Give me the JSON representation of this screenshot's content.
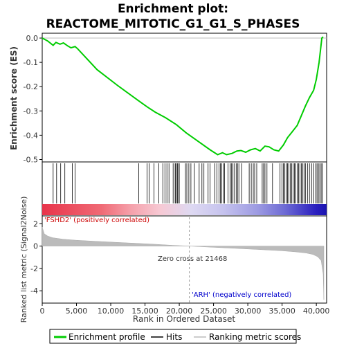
{
  "chart_data": {
    "type": "line",
    "title_line1": "Enrichment plot:",
    "title_line2": "REACTOME_MITOTIC_G1_G1_S_PHASES",
    "es_panel": {
      "ylabel": "Enrichment score (ES)",
      "ylim": [
        -0.51,
        0.02
      ],
      "yticks": [
        "0.0",
        "-0.1",
        "-0.2",
        "-0.3",
        "-0.4",
        "-0.5"
      ],
      "ytick_values": [
        0.0,
        -0.1,
        -0.2,
        -0.3,
        -0.4,
        -0.5
      ],
      "series": [
        {
          "name": "Enrichment profile",
          "color": "#00cc00",
          "x": [
            0,
            800,
            1600,
            2000,
            2600,
            3100,
            3700,
            4200,
            4800,
            5200,
            8000,
            11000,
            14000,
            15300,
            16500,
            18000,
            19600,
            21000,
            22500,
            24500,
            25600,
            26300,
            26900,
            27700,
            28400,
            29000,
            29700,
            30400,
            31100,
            31800,
            32500,
            33100,
            33800,
            34500,
            35200,
            35800,
            36500,
            37200,
            37800,
            38400,
            39000,
            39600,
            40000,
            40400,
            40800,
            41000
          ],
          "y": [
            0.0,
            -0.012,
            -0.03,
            -0.018,
            -0.025,
            -0.02,
            -0.032,
            -0.04,
            -0.035,
            -0.045,
            -0.13,
            -0.195,
            -0.257,
            -0.283,
            -0.305,
            -0.328,
            -0.357,
            -0.39,
            -0.42,
            -0.46,
            -0.48,
            -0.472,
            -0.48,
            -0.475,
            -0.465,
            -0.463,
            -0.47,
            -0.46,
            -0.455,
            -0.465,
            -0.445,
            -0.448,
            -0.46,
            -0.465,
            -0.44,
            -0.41,
            -0.385,
            -0.36,
            -0.32,
            -0.28,
            -0.245,
            -0.215,
            -0.17,
            -0.1,
            0.0,
            0.005
          ]
        }
      ]
    },
    "hits": {
      "name": "Hits",
      "positions": [
        1600,
        2100,
        2700,
        3300,
        4400,
        4800,
        14100,
        15300,
        15600,
        16300,
        17000,
        17600,
        17900,
        18200,
        18500,
        19100,
        19400,
        19500,
        19700,
        19800,
        20000,
        20900,
        21100,
        21400,
        21700,
        22200,
        22900,
        23300,
        23600,
        24200,
        24500,
        25200,
        25500,
        25800,
        26000,
        26200,
        26400,
        26600,
        27100,
        27400,
        27600,
        27800,
        28000,
        28300,
        28500,
        28700,
        29100,
        30200,
        30500,
        30800,
        31000,
        31300,
        32100,
        32300,
        32500,
        32800,
        33600,
        34700,
        35000,
        35200,
        35400,
        35600,
        35800,
        36000,
        36200,
        36400,
        36600,
        36800,
        37000,
        37200,
        37400,
        37600,
        37800,
        38000,
        38200,
        38400,
        38700,
        39000,
        39300,
        39600,
        39900,
        40100,
        40300,
        40500,
        40700,
        40900
      ]
    },
    "ranked_panel": {
      "ylabel": "Ranked list metric (Signal2Noise)",
      "ylim": [
        -5.1,
        2.7
      ],
      "yticks": [
        "2",
        "0",
        "-2",
        "-4"
      ],
      "ytick_values": [
        2,
        0,
        -2,
        -4
      ],
      "series_name": "Ranking metric scores",
      "color": "#bbbbbb",
      "x": [
        0,
        300,
        800,
        1500,
        3000,
        5000,
        8000,
        12000,
        16000,
        19000,
        21468,
        24000,
        28000,
        32000,
        35000,
        37000,
        38500,
        39500,
        40200,
        40700,
        41000,
        41100
      ],
      "y": [
        1.7,
        1.1,
        0.9,
        0.75,
        0.62,
        0.52,
        0.42,
        0.3,
        0.18,
        0.07,
        0.0,
        -0.08,
        -0.2,
        -0.32,
        -0.42,
        -0.52,
        -0.62,
        -0.75,
        -0.95,
        -1.3,
        -2.5,
        -4.8
      ],
      "zero_cross_label": "Zero cross at 21468",
      "zero_cross": 21468,
      "pos_label": "'FSHD2' (positively correlated)",
      "neg_label": "'ARH' (negatively correlated)"
    },
    "xaxis": {
      "xlabel": "Rank in Ordered Dataset",
      "xlim": [
        0,
        41500
      ],
      "xticks": [
        "0",
        "5,000",
        "10,000",
        "15,000",
        "20,000",
        "25,000",
        "30,000",
        "35,000",
        "40,000"
      ],
      "xtick_values": [
        0,
        5000,
        10000,
        15000,
        20000,
        25000,
        30000,
        35000,
        40000
      ]
    },
    "legend": {
      "placement": "bottom",
      "items": [
        {
          "label": "Enrichment profile",
          "color": "#00cc00"
        },
        {
          "label": "Hits",
          "color": "#000000"
        },
        {
          "label": "Ranking metric scores",
          "color": "#bbbbbb"
        }
      ]
    },
    "colorbar": {
      "stops": [
        {
          "x": 0,
          "color": "#e8344a"
        },
        {
          "x": 8500,
          "color": "#f06a75"
        },
        {
          "x": 13000,
          "color": "#f5a3ad"
        },
        {
          "x": 17000,
          "color": "#f7c9d4"
        },
        {
          "x": 21468,
          "color": "#ded9f2"
        },
        {
          "x": 26000,
          "color": "#c6c3ee"
        },
        {
          "x": 31000,
          "color": "#9d9be2"
        },
        {
          "x": 35000,
          "color": "#6d6ad4"
        },
        {
          "x": 39500,
          "color": "#2a1fbf"
        },
        {
          "x": 41000,
          "color": "#1a14b0"
        }
      ]
    }
  }
}
